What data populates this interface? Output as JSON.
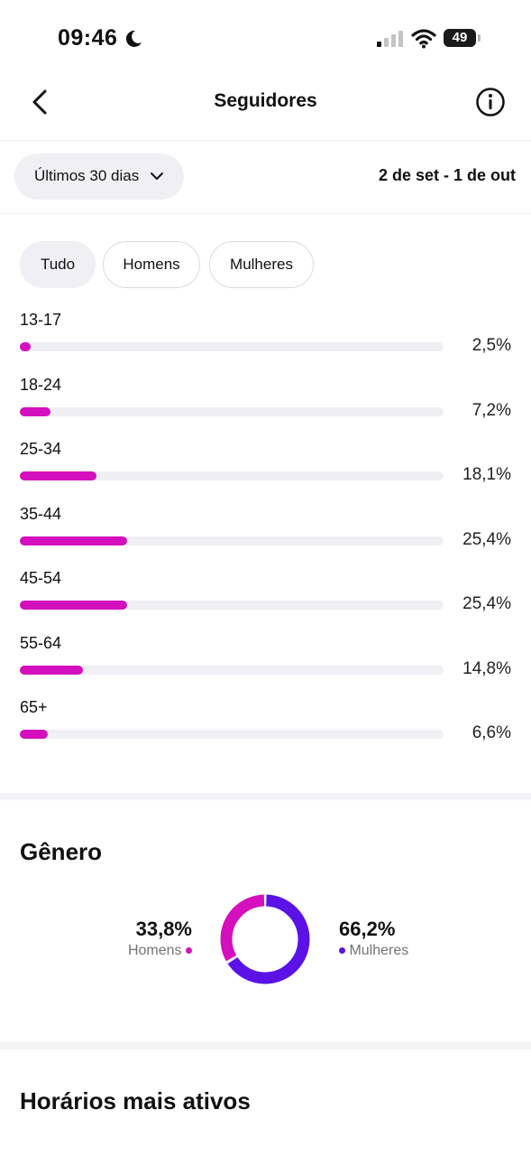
{
  "status_bar": {
    "time": "09:46",
    "battery": "49",
    "icons": [
      "moon-icon",
      "signal-icon",
      "wifi-icon",
      "battery-icon"
    ]
  },
  "header": {
    "title": "Seguidores",
    "back_icon": "chevron-left-icon",
    "info_icon": "info-icon"
  },
  "filter": {
    "period_label": "Últimos 30 dias",
    "period_icon": "chevron-down-icon",
    "date_range": "2 de set - 1 de out"
  },
  "segments": [
    {
      "label": "Tudo",
      "active": true
    },
    {
      "label": "Homens",
      "active": false
    },
    {
      "label": "Mulheres",
      "active": false
    }
  ],
  "ages": [
    {
      "label": "13-17",
      "value": 2.5,
      "pct": "2,5%"
    },
    {
      "label": "18-24",
      "value": 7.2,
      "pct": "7,2%"
    },
    {
      "label": "25-34",
      "value": 18.1,
      "pct": "18,1%"
    },
    {
      "label": "35-44",
      "value": 25.4,
      "pct": "25,4%"
    },
    {
      "label": "45-54",
      "value": 25.4,
      "pct": "25,4%"
    },
    {
      "label": "55-64",
      "value": 14.8,
      "pct": "14,8%"
    },
    {
      "label": "65+",
      "value": 6.6,
      "pct": "6,6%"
    }
  ],
  "gender": {
    "title": "Gênero",
    "men": {
      "value": "33,8%",
      "label": "Homens",
      "share": 33.8,
      "color": "#d40fbd"
    },
    "women": {
      "value": "66,2%",
      "label": "Mulheres",
      "share": 66.2,
      "color": "#5b12e6"
    }
  },
  "hours": {
    "title": "Horários mais ativos"
  },
  "colors": {
    "accent_magenta": "#d40fbd",
    "accent_purple": "#5b12e6",
    "track": "#efeff4"
  }
}
